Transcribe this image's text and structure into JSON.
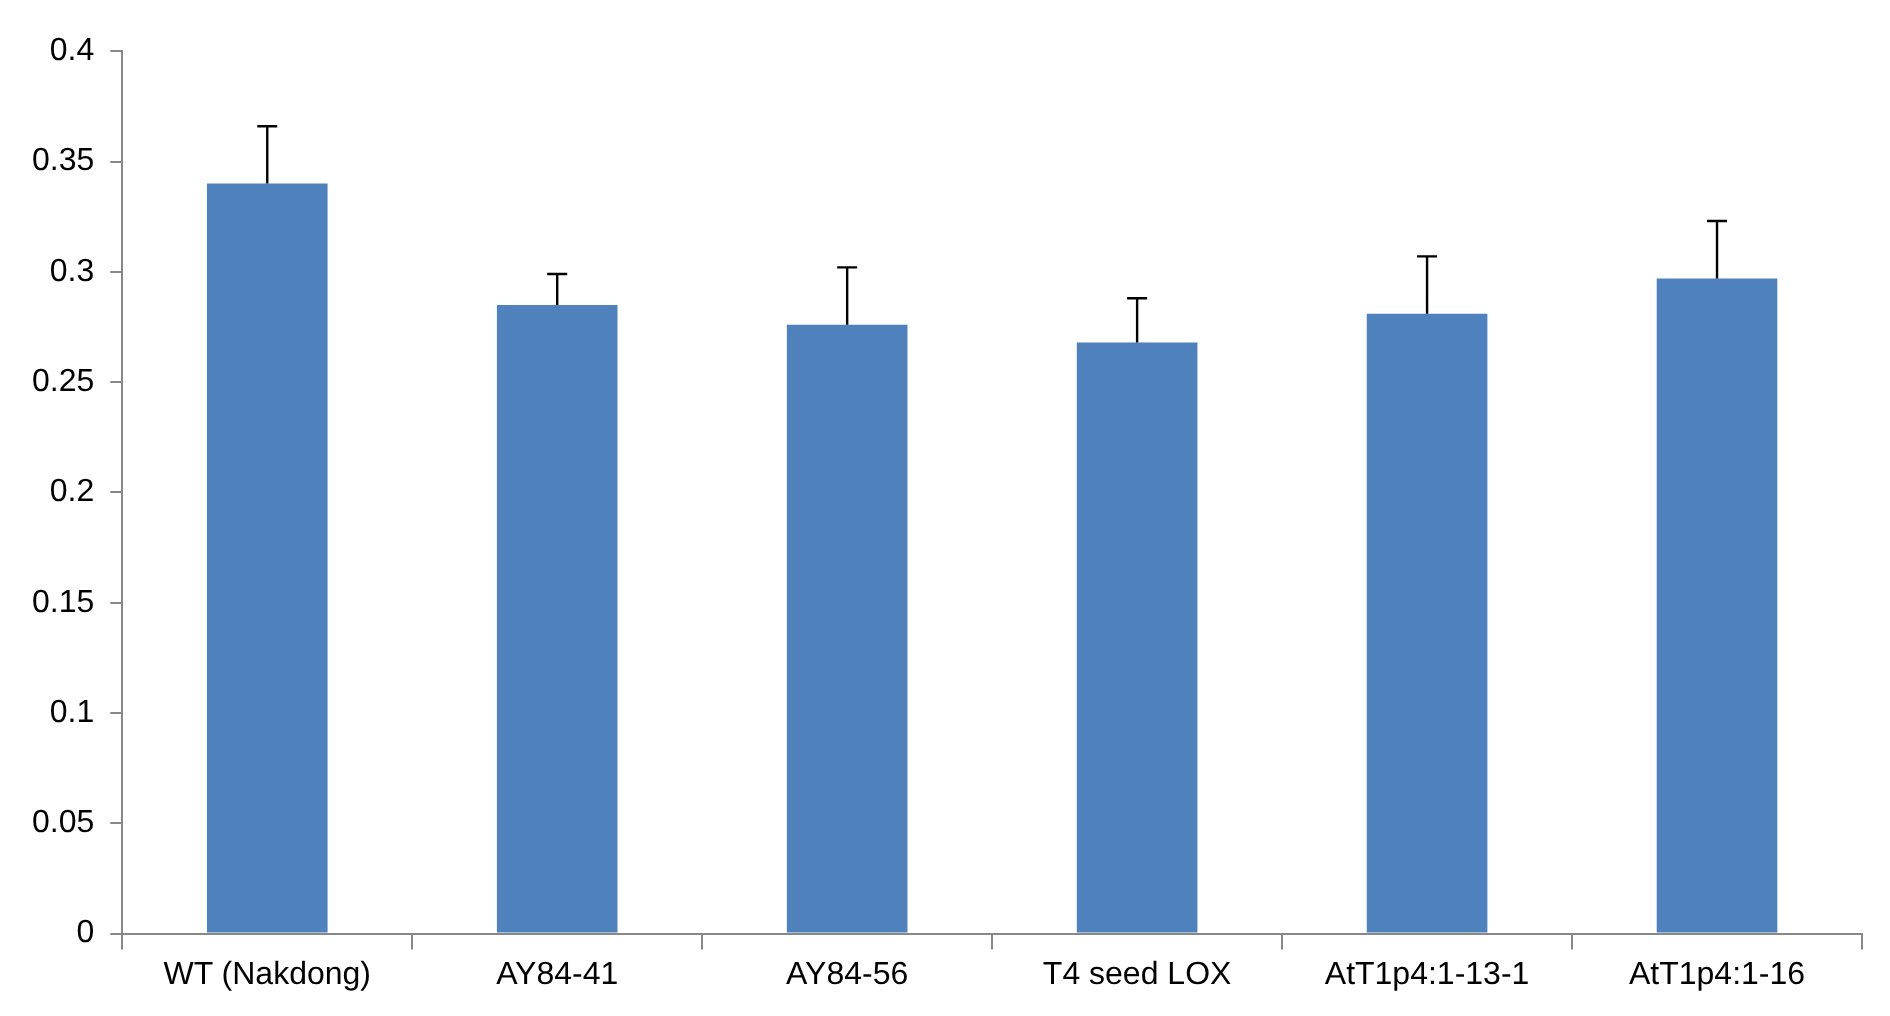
{
  "chart_data": {
    "type": "bar",
    "categories": [
      "WT (Nakdong)",
      "AY84-41",
      "AY84-56",
      "T4 seed LOX",
      "AtT1p4:1-13-1",
      "AtT1p4:1-16"
    ],
    "values": [
      0.34,
      0.285,
      0.276,
      0.268,
      0.281,
      0.297
    ],
    "errors": [
      [
        0.34,
        0.366
      ],
      [
        0.285,
        0.299
      ],
      [
        0.276,
        0.302
      ],
      [
        0.268,
        0.288
      ],
      [
        0.281,
        0.307
      ],
      [
        0.297,
        0.323
      ]
    ],
    "color": "#4f81bd",
    "ylim": [
      0,
      0.4
    ],
    "yticks": [
      0,
      0.05,
      0.1,
      0.15,
      0.2,
      0.25,
      0.3,
      0.35,
      0.4
    ],
    "grid": false,
    "legend": false
  }
}
